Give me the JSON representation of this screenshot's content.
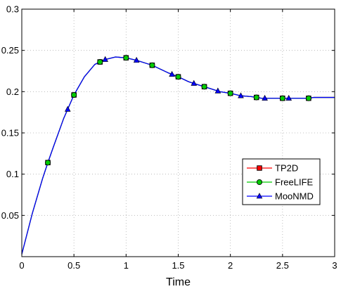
{
  "chart_data": {
    "type": "line",
    "title": "",
    "xlabel": "Time",
    "ylabel": "",
    "xlim": [
      0,
      3
    ],
    "ylim": [
      0,
      0.3
    ],
    "xticks": [
      0,
      0.5,
      1,
      1.5,
      2,
      2.5,
      3
    ],
    "xtick_labels": [
      "0",
      "0.5",
      "1",
      "1.5",
      "2",
      "2.5",
      "3"
    ],
    "yticks": [
      0.05,
      0.1,
      0.15,
      0.2,
      0.25,
      0.3
    ],
    "ytick_labels": [
      "0.05",
      "0.1",
      "0.15",
      "0.2",
      "0.25",
      "0.3"
    ],
    "grid": true,
    "legend_position": "lower-right",
    "x": [
      0,
      0.1,
      0.2,
      0.25,
      0.3,
      0.4,
      0.5,
      0.6,
      0.7,
      0.75,
      0.8,
      0.9,
      1.0,
      1.1,
      1.2,
      1.25,
      1.3,
      1.4,
      1.5,
      1.6,
      1.7,
      1.75,
      1.8,
      1.9,
      2.0,
      2.1,
      2.2,
      2.25,
      2.3,
      2.4,
      2.5,
      2.6,
      2.7,
      2.75,
      2.8,
      2.9,
      3.0
    ],
    "series": [
      {
        "name": "TP2D",
        "color": "#ff0000",
        "marker": "square",
        "marker_x": [
          0.25,
          0.5,
          0.75,
          1.0,
          1.25,
          1.5,
          1.75,
          2.0,
          2.25,
          2.5,
          2.75
        ],
        "values": [
          0.003,
          0.052,
          0.095,
          0.114,
          0.132,
          0.167,
          0.196,
          0.218,
          0.233,
          0.236,
          0.239,
          0.242,
          0.241,
          0.238,
          0.234,
          0.232,
          0.229,
          0.223,
          0.218,
          0.212,
          0.208,
          0.206,
          0.204,
          0.2,
          0.198,
          0.195,
          0.194,
          0.193,
          0.192,
          0.192,
          0.192,
          0.192,
          0.192,
          0.192,
          0.193,
          0.193,
          0.193
        ]
      },
      {
        "name": "FreeLIFE",
        "color": "#00cc00",
        "marker": "circle",
        "marker_x": [
          0.25,
          0.5,
          0.75,
          1.0,
          1.25,
          1.5,
          1.75,
          2.0,
          2.25,
          2.5,
          2.75
        ],
        "values": [
          0.003,
          0.052,
          0.095,
          0.114,
          0.132,
          0.167,
          0.196,
          0.218,
          0.233,
          0.236,
          0.239,
          0.242,
          0.241,
          0.238,
          0.234,
          0.232,
          0.229,
          0.223,
          0.218,
          0.212,
          0.208,
          0.206,
          0.204,
          0.2,
          0.198,
          0.195,
          0.194,
          0.193,
          0.192,
          0.192,
          0.192,
          0.192,
          0.192,
          0.192,
          0.193,
          0.193,
          0.193
        ]
      },
      {
        "name": "MooNMD",
        "color": "#0000ff",
        "marker": "triangle",
        "marker_x": [
          0.44,
          0.8,
          1.1,
          1.44,
          1.65,
          1.88,
          2.1,
          2.33,
          2.56
        ],
        "values": [
          0.003,
          0.052,
          0.095,
          0.114,
          0.132,
          0.167,
          0.196,
          0.218,
          0.233,
          0.236,
          0.239,
          0.242,
          0.241,
          0.238,
          0.234,
          0.232,
          0.229,
          0.223,
          0.218,
          0.212,
          0.208,
          0.206,
          0.204,
          0.2,
          0.198,
          0.195,
          0.194,
          0.193,
          0.192,
          0.192,
          0.192,
          0.192,
          0.192,
          0.192,
          0.193,
          0.193,
          0.193
        ]
      }
    ]
  }
}
